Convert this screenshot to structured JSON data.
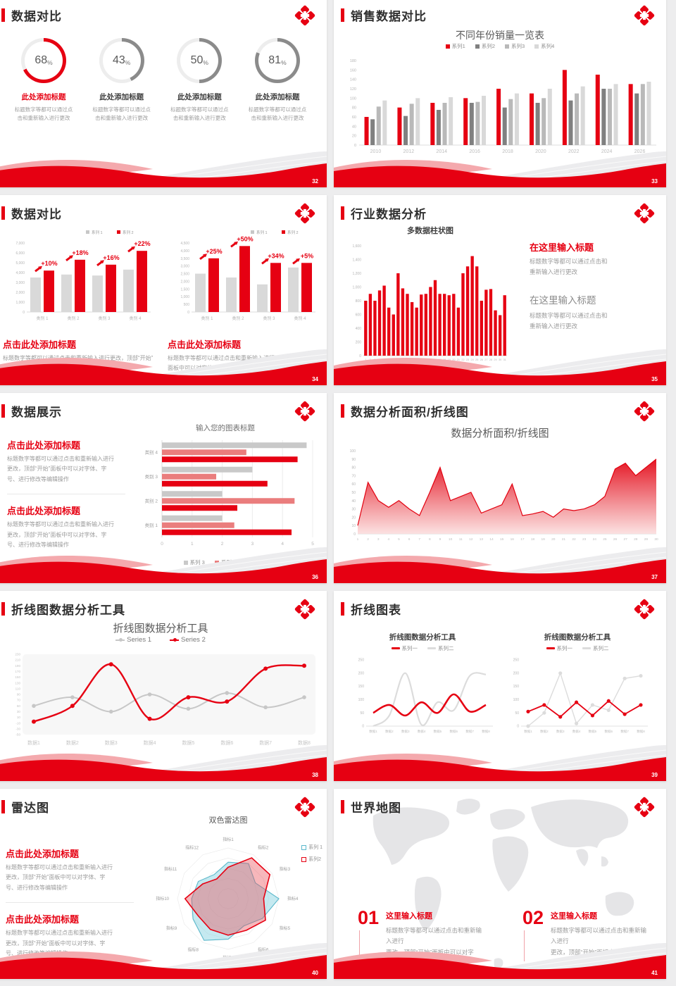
{
  "percent_sign": "%",
  "colors": {
    "red": "#e60012",
    "light_red": "#ea7d7d",
    "gray_dark": "#808080",
    "gray_mid": "#b9b9b9",
    "gray_light": "#d9d9d9",
    "ring_gray": "#8b8b8b",
    "blue": "#5bb8cb"
  },
  "slides": {
    "s32": {
      "title": "数据对比",
      "page": "32",
      "rings": [
        {
          "pct": 68,
          "color": "#e60012",
          "heading": "此处添加标题",
          "body": "标题数字等都可以通过点\n击和重新输入进行更改"
        },
        {
          "pct": 43,
          "color": "#8b8b8b",
          "heading": "此处添加标题",
          "body": "标题数字等都可以通过点\n击和重新输入进行更改"
        },
        {
          "pct": 50,
          "color": "#8b8b8b",
          "heading": "此处添加标题",
          "body": "标题数字等都可以通过点\n击和重新输入进行更改"
        },
        {
          "pct": 81,
          "color": "#8b8b8b",
          "heading": "此处添加标题",
          "body": "标题数字等都可以通过点\n击和重新输入进行更改"
        }
      ]
    },
    "s33": {
      "title": "销售数据对比",
      "page": "33",
      "chart": {
        "type": "bar",
        "title": "不同年份销量一览表",
        "categories": [
          "2010",
          "2012",
          "2014",
          "2016",
          "2018",
          "2020",
          "2022",
          "2024",
          "2026"
        ],
        "ymax": 180,
        "ystep": 20,
        "series": [
          {
            "name": "系列1",
            "color": "#e60012",
            "values": [
              60,
              80,
              90,
              100,
              120,
              110,
              160,
              150,
              130
            ]
          },
          {
            "name": "系列2",
            "color": "#808080",
            "values": [
              55,
              62,
              75,
              90,
              80,
              90,
              95,
              120,
              110
            ]
          },
          {
            "name": "系列3",
            "color": "#b9b9b9",
            "values": [
              82,
              88,
              90,
              92,
              98,
              100,
              110,
              120,
              130
            ]
          },
          {
            "name": "系列4",
            "color": "#d9d9d9",
            "values": [
              95,
              100,
              102,
              105,
              110,
              120,
              125,
              130,
              135
            ]
          }
        ]
      }
    },
    "s34": {
      "title": "数据对比",
      "page": "34",
      "charts": [
        {
          "type": "bar",
          "legend": [
            "系列 1",
            "系列 2"
          ],
          "ymax": 7000,
          "ystep": 1000,
          "categories": [
            "类别 1",
            "类别 2",
            "类别 3",
            "类别 4"
          ],
          "gray": [
            3500,
            3800,
            3700,
            4300
          ],
          "red": [
            4200,
            5300,
            4800,
            6200
          ],
          "labels": [
            "+10%",
            "+18%",
            "+16%",
            "+22%"
          ]
        },
        {
          "type": "bar",
          "legend": [
            "系列 1",
            "系列 2"
          ],
          "ymax": 4500,
          "ystep": 500,
          "categories": [
            "类别 1",
            "类别 2",
            "类别 3",
            "类别 4"
          ],
          "gray": [
            2500,
            2250,
            1800,
            2900
          ],
          "red": [
            3500,
            4300,
            3200,
            3200
          ],
          "labels": [
            "+25%",
            "+50%",
            "+34%",
            "+5%"
          ]
        }
      ],
      "blocks": [
        {
          "heading": "点击此处添加标题",
          "body": "标题数字等都可以通过点击和重新输入进行更改，顶部“开始”\n面板中可以对字体、字号、颜色"
        },
        {
          "heading": "点击此处添加标题",
          "body": "标题数字等都可以通过点击和重新输入进行更改，顶部“开始”\n面板中可以对字体、字号、颜色"
        }
      ]
    },
    "s35": {
      "title": "行业数据分析",
      "page": "35",
      "chart": {
        "type": "bar",
        "title": "多数据柱状图",
        "ymax": 1600,
        "ystep": 200,
        "color": "#e60012",
        "values": [
          800,
          900,
          800,
          950,
          1020,
          700,
          600,
          1200,
          980,
          900,
          780,
          700,
          890,
          900,
          1000,
          1100,
          900,
          900,
          880,
          900,
          700,
          1200,
          1300,
          1450,
          1300,
          800,
          960,
          970,
          660,
          590,
          880
        ]
      },
      "blocks": [
        {
          "heading": "在这里输入标题",
          "body": "标题数字等都可以通过点击和\n重新输入进行更改"
        },
        {
          "heading": "在这里输入标题",
          "body": "标题数字等都可以通过点击和\n重新输入进行更改"
        }
      ]
    },
    "s36": {
      "title": "数据展示",
      "page": "36",
      "blocks": [
        {
          "heading": "点击此处添加标题",
          "body": "标题数字等都可以通过点击和重新输入进行\n更改，顶部“开始”面板中可以对字体、字\n号、进行修改等编辑操作"
        },
        {
          "heading": "点击此处添加标题",
          "body": "标题数字等都可以通过点击和重新输入进行\n更改，顶部“开始”面板中可以对字体、字\n号、进行修改等编辑操作"
        }
      ],
      "chart": {
        "type": "hbar",
        "title": "输入您的图表标题",
        "categories": [
          "类别 4",
          "类别 3",
          "类别 2",
          "类别 1"
        ],
        "xmax": 5,
        "series": [
          {
            "name": "系列 3",
            "color": "#c9c9c9",
            "values": [
              4.8,
              3.0,
              2.0,
              2.0
            ]
          },
          {
            "name": "系列 2",
            "color": "#ea7d7d",
            "values": [
              2.8,
              1.8,
              4.4,
              2.4
            ]
          },
          {
            "name": "系列 1",
            "color": "#e60012",
            "values": [
              4.5,
              3.5,
              2.5,
              4.3
            ]
          }
        ]
      }
    },
    "s37": {
      "title": "数据分析面积/折线图",
      "page": "37",
      "chart": {
        "type": "area",
        "title": "数据分析面积/折线图",
        "ymax": 100,
        "ystep": 10,
        "values": [
          10,
          62,
          40,
          32,
          40,
          30,
          22,
          50,
          80,
          40,
          45,
          50,
          25,
          30,
          35,
          60,
          22,
          24,
          27,
          20,
          30,
          28,
          30,
          35,
          45,
          78,
          85,
          70,
          80,
          90
        ]
      }
    },
    "s38": {
      "title": "折线图数据分析工具",
      "page": "38",
      "chart": {
        "type": "line",
        "title": "折线图数据分析工具",
        "x": [
          "数据1",
          "数据2",
          "数据3",
          "数据4",
          "数据5",
          "数据6",
          "数据7",
          "数据8"
        ],
        "ymin": -50,
        "ymax": 230,
        "ystep": 20,
        "series": [
          {
            "name": "Series 1",
            "color": "#c7c7c7",
            "type": "dl",
            "values": [
              50,
              80,
              30,
              90,
              40,
              95,
              45,
              80
            ]
          },
          {
            "name": "Series 2",
            "color": "#e60012",
            "type": "dl",
            "values": [
              -5,
              50,
              195,
              5,
              80,
              65,
              180,
              190
            ]
          }
        ]
      }
    },
    "s39": {
      "title": "折线图表",
      "page": "39",
      "charts": [
        {
          "type": "line",
          "title": "折线图数据分析工具",
          "markers": false,
          "x": [
            "数据1",
            "数据2",
            "数据3",
            "数据4",
            "数据5",
            "数据6",
            "数据7",
            "数据8"
          ],
          "ymax": 250,
          "ystep": 50,
          "series": [
            {
              "name": "系列一",
              "color": "#e60012",
              "type": "ln",
              "values": [
                50,
                80,
                40,
                90,
                50,
                120,
                55,
                80
              ]
            },
            {
              "name": "系列二",
              "color": "#dcdcdc",
              "type": "ln",
              "values": [
                0,
                40,
                200,
                5,
                90,
                60,
                190,
                195
              ]
            }
          ]
        },
        {
          "type": "line",
          "title": "折线图数据分析工具",
          "markers": true,
          "x": [
            "数据1",
            "数据2",
            "数据3",
            "数据4",
            "数据5",
            "数据6",
            "数据7",
            "数据8"
          ],
          "ymax": 250,
          "ystep": 50,
          "series": [
            {
              "name": "系列一",
              "color": "#e60012",
              "type": "ln",
              "values": [
                55,
                80,
                35,
                90,
                40,
                95,
                45,
                80
              ]
            },
            {
              "name": "系列二",
              "color": "#dcdcdc",
              "type": "ln",
              "values": [
                0,
                50,
                200,
                10,
                80,
                60,
                180,
                190
              ]
            }
          ]
        }
      ]
    },
    "s40": {
      "title": "雷达图",
      "page": "40",
      "blocks": [
        {
          "heading": "点击此处添加标题",
          "body": "标题数字等都可以通过点击和重新输入进行\n更改，顶部“开始”面板中可以对字体、字\n号、进行修改等编辑操作"
        },
        {
          "heading": "点击此处添加标题",
          "body": "标题数字等都可以通过点击和重新输入进行\n更改，顶部“开始”面板中可以对字体、字\n号、进行修改等编辑操作"
        }
      ],
      "chart": {
        "type": "radar",
        "title": "双色雷达图",
        "labels": [
          "指标1",
          "指标2",
          "指标3",
          "指标4",
          "指标5",
          "指标6",
          "指标7",
          "指标8",
          "指标9",
          "指标10",
          "指标11",
          "指标12"
        ],
        "series": [
          {
            "name": "系列 1",
            "color": "#5bb8cb",
            "fill": "rgba(140,211,225,0.5)",
            "type": "osq",
            "values": [
              0.72,
              0.8,
              0.62,
              1.0,
              0.78,
              0.62,
              0.8,
              0.95,
              0.8,
              0.72,
              0.68,
              0.55
            ]
          },
          {
            "name": "系列2",
            "color": "#e60012",
            "fill": "rgba(235,75,85,0.40)",
            "type": "osq",
            "values": [
              0.62,
              0.93,
              0.95,
              0.7,
              0.85,
              0.72,
              0.72,
              0.7,
              0.68,
              0.85,
              0.58,
              0.45
            ]
          }
        ]
      }
    },
    "s41": {
      "title": "世界地图",
      "page": "41",
      "items": [
        {
          "num": "01",
          "heading": "这里输入标题",
          "body": "标题数字等都可以通过点击和重新输入进行\n更改，顶部“开始”面板中可以对字体、字\n号、颜色、行距等进行修改。"
        },
        {
          "num": "02",
          "heading": "这里输入标题",
          "body": "标题数字等都可以通过点击和重新输入进行\n更改，顶部“开始”面板中可以对字体、字\n号、颜色、行距等进行修改。"
        }
      ]
    }
  }
}
